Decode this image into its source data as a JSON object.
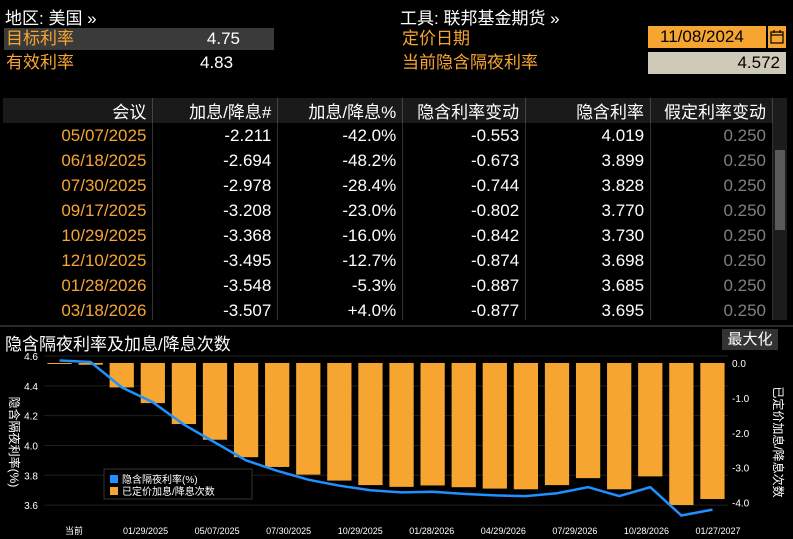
{
  "header": {
    "region_label": "地区: 美国 »",
    "instrument_label": "工具: 联邦基金期货 »",
    "target_rate_label": "目标利率",
    "target_rate_value": "4.75",
    "effective_rate_label": "有效利率",
    "effective_rate_value": "4.83",
    "pricing_date_label": "定价日期",
    "pricing_date_value": "11/08/2024",
    "implied_rate_label": "当前隐含隔夜利率",
    "implied_rate_value": "4.572"
  },
  "table": {
    "columns": [
      "会议",
      "加息/降息#",
      "加息/降息%",
      "隐含利率变动",
      "隐含利率",
      "假定利率变动"
    ],
    "rows": [
      [
        "05/07/2025",
        "-2.211",
        "-42.0%",
        "-0.553",
        "4.019",
        "0.250"
      ],
      [
        "06/18/2025",
        "-2.694",
        "-48.2%",
        "-0.673",
        "3.899",
        "0.250"
      ],
      [
        "07/30/2025",
        "-2.978",
        "-28.4%",
        "-0.744",
        "3.828",
        "0.250"
      ],
      [
        "09/17/2025",
        "-3.208",
        "-23.0%",
        "-0.802",
        "3.770",
        "0.250"
      ],
      [
        "10/29/2025",
        "-3.368",
        "-16.0%",
        "-0.842",
        "3.730",
        "0.250"
      ],
      [
        "12/10/2025",
        "-3.495",
        "-12.7%",
        "-0.874",
        "3.698",
        "0.250"
      ],
      [
        "01/28/2026",
        "-3.548",
        "-5.3%",
        "-0.887",
        "3.685",
        "0.250"
      ],
      [
        "03/18/2026",
        "-3.507",
        "+4.0%",
        "-0.877",
        "3.695",
        "0.250"
      ]
    ]
  },
  "chart_panel": {
    "title": "隐含隔夜利率及加息/降息次数",
    "maximize_label": "最大化"
  },
  "chart_data": {
    "type": "bar",
    "title": "隐含隔夜利率及加息/降息次数",
    "ylabel": "隐含隔夜利率(%)",
    "y2label": "已定价加息/降息次数",
    "ylim": [
      3.5,
      4.6
    ],
    "y2lim": [
      -4.5,
      0.2
    ],
    "yticks": [
      "3.6",
      "3.8",
      "4.0",
      "4.2",
      "4.4",
      "4.6"
    ],
    "y2ticks": [
      "0.0",
      "-1.0",
      "-2.0",
      "-3.0",
      "-4.0"
    ],
    "xticks": [
      "当前",
      "01/29/2025",
      "05/07/2025",
      "07/30/2025",
      "10/29/2025",
      "01/28/2026",
      "04/29/2026",
      "07/29/2026",
      "10/28/2026",
      "01/27/2027"
    ],
    "legend": [
      "隐含隔夜利率(%)",
      "已定价加息/降息次数"
    ],
    "series": [
      {
        "name": "隐含隔夜利率(%)",
        "type": "line",
        "color": "#1e90ff",
        "values": [
          4.57,
          4.56,
          4.39,
          4.29,
          4.14,
          4.02,
          3.9,
          3.83,
          3.77,
          3.73,
          3.7,
          3.685,
          3.69,
          3.675,
          3.665,
          3.66,
          3.68,
          3.72,
          3.66,
          3.72,
          3.53,
          3.57
        ]
      },
      {
        "name": "已定价加息/降息次数",
        "type": "bar",
        "color": "#f7a531",
        "values": [
          0.0,
          -0.05,
          -0.7,
          -1.15,
          -1.75,
          -2.2,
          -2.7,
          -2.98,
          -3.2,
          -3.37,
          -3.5,
          -3.55,
          -3.51,
          -3.56,
          -3.6,
          -3.62,
          -3.5,
          -3.3,
          -3.62,
          -3.25,
          -4.07,
          -3.9
        ]
      }
    ]
  },
  "colors": {
    "accent_orange": "#f7a531",
    "line_blue": "#1e90ff",
    "background": "#000000"
  }
}
